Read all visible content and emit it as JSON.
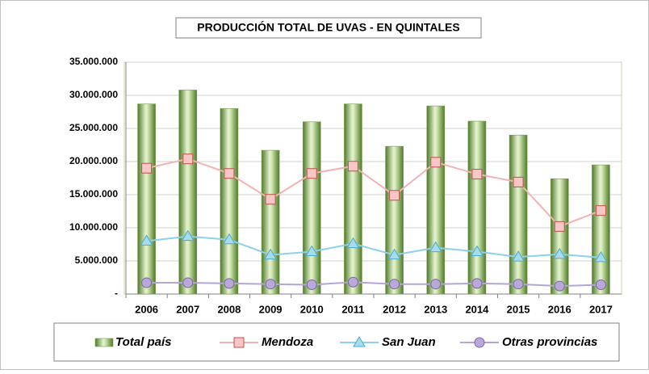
{
  "chart_data": {
    "type": "bar",
    "title": "PRODUCCIÓN TOTAL DE UVAS - EN QUINTALES",
    "categories": [
      "2006",
      "2007",
      "2008",
      "2009",
      "2010",
      "2011",
      "2012",
      "2013",
      "2014",
      "2015",
      "2016",
      "2017"
    ],
    "series": [
      {
        "name": "Total país",
        "type": "bar",
        "color": "#9bbb59",
        "values": [
          28700000,
          30800000,
          28000000,
          21700000,
          26000000,
          28700000,
          22300000,
          28400000,
          26100000,
          24000000,
          17400000,
          19500000
        ]
      },
      {
        "name": "Mendoza",
        "type": "line",
        "marker": "square",
        "color": "#f2b3b3",
        "values": [
          19000000,
          20400000,
          18200000,
          14300000,
          18200000,
          19300000,
          14900000,
          19900000,
          18100000,
          16900000,
          10200000,
          12600000
        ]
      },
      {
        "name": "San Juan",
        "type": "line",
        "marker": "triangle",
        "color": "#8dd0ea",
        "values": [
          8000000,
          8700000,
          8200000,
          5900000,
          6400000,
          7600000,
          5900000,
          7000000,
          6400000,
          5600000,
          6000000,
          5500000
        ]
      },
      {
        "name": "Otras provincias",
        "type": "line",
        "marker": "circle",
        "color": "#b3a6d6",
        "values": [
          1700000,
          1700000,
          1600000,
          1500000,
          1400000,
          1800000,
          1500000,
          1500000,
          1600000,
          1500000,
          1200000,
          1400000
        ]
      }
    ],
    "ylim": [
      0,
      35000000
    ],
    "yticks": [
      {
        "value": 0,
        "label": "-"
      },
      {
        "value": 5000000,
        "label": "5.000.000"
      },
      {
        "value": 10000000,
        "label": "10.000.000"
      },
      {
        "value": 15000000,
        "label": "15.000.000"
      },
      {
        "value": 20000000,
        "label": "20.000.000"
      },
      {
        "value": 25000000,
        "label": "25.000.000"
      },
      {
        "value": 30000000,
        "label": "30.000.000"
      },
      {
        "value": 35000000,
        "label": "35.000.000"
      }
    ],
    "grid": true,
    "legend": "bottom"
  }
}
